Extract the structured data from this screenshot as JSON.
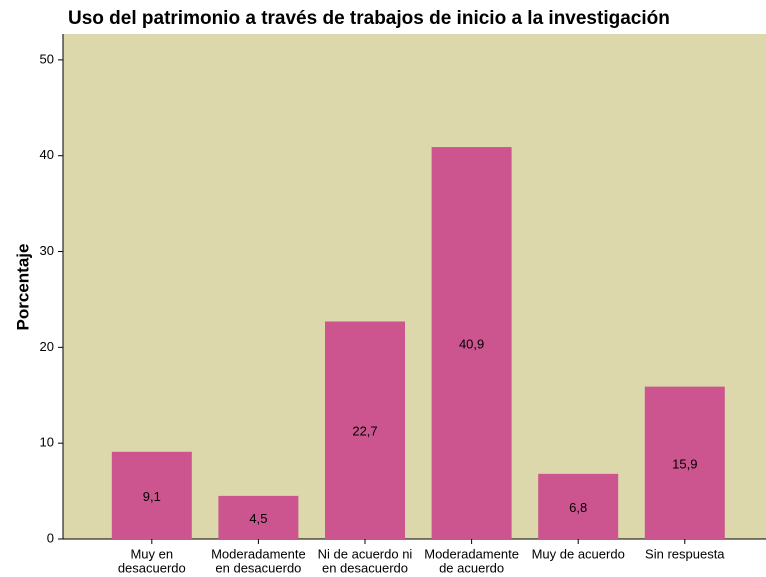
{
  "chart_data": {
    "type": "bar",
    "title": "Uso del patrimonio a través de trabajos de inicio a la investigación",
    "ylabel": "Porcentaje",
    "categories": [
      [
        "Muy en",
        "desacuerdo"
      ],
      [
        "Moderadamente",
        "en desacuerdo"
      ],
      [
        "Ni de acuerdo ni",
        "en desacuerdo"
      ],
      [
        "Moderadamente",
        "de acuerdo"
      ],
      [
        "Muy de acuerdo"
      ],
      [
        "Sin respuesta"
      ]
    ],
    "values": [
      9.1,
      4.5,
      22.7,
      40.9,
      6.8,
      15.9
    ],
    "value_labels": [
      "9,1",
      "4,5",
      "22,7",
      "40,9",
      "6,8",
      "15,9"
    ],
    "color": "#cc5590",
    "background": "#dcd8ab",
    "ylim": [
      0,
      52.7
    ],
    "yticks": [
      0,
      10,
      20,
      30,
      40,
      50
    ],
    "grid": false
  }
}
